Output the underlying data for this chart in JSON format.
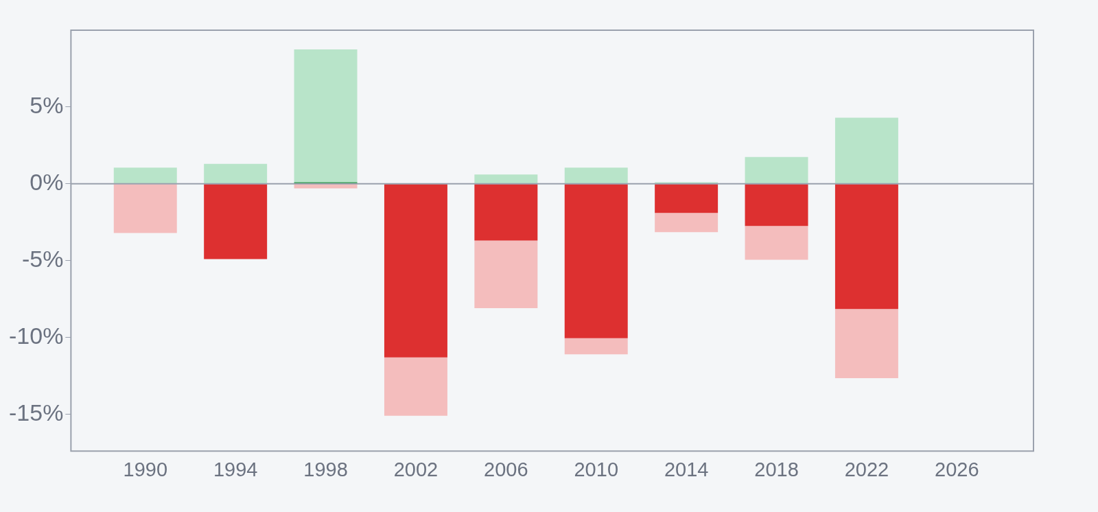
{
  "chart_data": {
    "type": "bar",
    "x": [
      1990,
      1994,
      1998,
      2002,
      2006,
      2010,
      2014,
      2018,
      2022
    ],
    "series": [
      {
        "color": "#dd3030",
        "values": [
          null,
          -4.9,
          null,
          -11.3,
          -3.7,
          -10.05,
          -1.9,
          -2.75,
          -8.15
        ]
      },
      {
        "color": "#2a9a4a",
        "values": [
          null,
          null,
          0.1,
          null,
          null,
          null,
          null,
          null,
          null
        ]
      },
      {
        "color": "#b8e4c9",
        "values": [
          1.05,
          1.3,
          8.65,
          null,
          0.6,
          1.05,
          0.1,
          1.75,
          4.3
        ]
      },
      {
        "color": "#f4bdbd",
        "values": [
          -3.2,
          null,
          -0.3,
          -3.8,
          -4.4,
          -1.05,
          -1.25,
          -2.2,
          -4.5
        ]
      }
    ],
    "stacked": true,
    "xlim": [
      1986.7,
      2029.4
    ],
    "xticks": [
      1990,
      1994,
      1998,
      2002,
      2006,
      2010,
      2014,
      2018,
      2022,
      2026
    ],
    "ylim": [
      -17.4,
      10
    ],
    "yticks": [
      {
        "value": -15,
        "label": "-15%"
      },
      {
        "value": -10,
        "label": "-10%"
      },
      {
        "value": -5,
        "label": "-5%"
      },
      {
        "value": 0,
        "label": "0%"
      },
      {
        "value": 5,
        "label": "5%"
      }
    ],
    "ref_lines": [
      {
        "axis": "y",
        "value": 0,
        "color": "#9aa1ad"
      }
    ],
    "grid": false,
    "legend": false
  }
}
